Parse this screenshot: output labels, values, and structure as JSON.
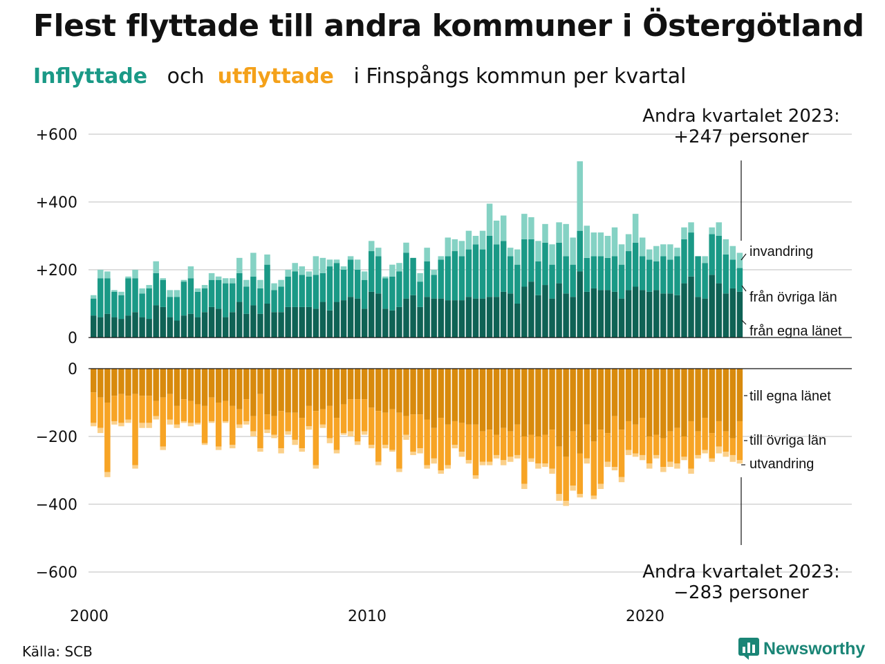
{
  "title": "Flest flyttade till andra kommuner i Östergötland",
  "subtitle": {
    "inflow_word": "Inflyttade",
    "and_word": "och",
    "outflow_word": "utflyttade",
    "rest": "i Finspångs kommun per kvartal"
  },
  "source": "Källa: SCB",
  "logo": {
    "name": "Newsworthy",
    "icon": "newsworthy-bar-icon"
  },
  "colors": {
    "in_own": "#0f6255",
    "in_other": "#1a9986",
    "in_imm": "#85d2c4",
    "out_own": "#d88a0d",
    "out_other": "#f7a425",
    "out_emi": "#fbd08a",
    "subtitle_in": "#1a9986",
    "subtitle_out": "#f4a11a"
  },
  "chart_data": {
    "type": "bar",
    "stacked": true,
    "x_start": "2000 Q1",
    "x_end": "2023 Q2",
    "x_ticks": [
      "2000",
      "2010",
      "2020"
    ],
    "y_ticks_top": [
      "+600",
      "+400",
      "+200",
      "0"
    ],
    "y_ticks_bottom": [
      "0",
      "−200",
      "−400",
      "−600"
    ],
    "ylim_top": [
      0,
      600
    ],
    "ylim_bottom": [
      -600,
      0
    ],
    "grid": true,
    "inflow_series": [
      {
        "label": "från egna länet",
        "values": [
          65,
          60,
          70,
          60,
          55,
          65,
          75,
          60,
          55,
          95,
          90,
          60,
          50,
          65,
          70,
          60,
          75,
          90,
          85,
          60,
          75,
          105,
          70,
          95,
          70,
          100,
          75,
          75,
          90,
          90,
          90,
          90,
          85,
          105,
          80,
          105,
          110,
          120,
          115,
          85,
          135,
          130,
          85,
          80,
          90,
          115,
          125,
          90,
          120,
          115,
          115,
          110,
          110,
          110,
          120,
          115,
          115,
          120,
          120,
          135,
          130,
          100,
          150,
          165,
          125,
          155,
          115,
          160,
          130,
          120,
          195,
          135,
          145,
          140,
          140,
          135,
          115,
          140,
          150,
          140,
          135,
          140,
          130,
          130,
          125,
          160,
          180,
          120,
          115,
          185,
          160,
          130,
          145,
          135
        ]
      },
      {
        "label": "från övriga län",
        "values": [
          50,
          115,
          105,
          75,
          70,
          110,
          100,
          70,
          90,
          95,
          80,
          60,
          70,
          100,
          105,
          75,
          70,
          80,
          85,
          100,
          85,
          85,
          80,
          85,
          75,
          115,
          65,
          75,
          90,
          105,
          95,
          90,
          100,
          85,
          130,
          115,
          90,
          110,
          85,
          85,
          120,
          110,
          90,
          100,
          105,
          135,
          110,
          75,
          105,
          70,
          115,
          130,
          145,
          130,
          140,
          160,
          145,
          180,
          155,
          150,
          110,
          115,
          140,
          125,
          100,
          125,
          100,
          120,
          110,
          95,
          120,
          100,
          95,
          100,
          95,
          105,
          100,
          115,
          130,
          100,
          95,
          85,
          110,
          100,
          115,
          130,
          130,
          120,
          105,
          120,
          140,
          115,
          85,
          70
        ]
      },
      {
        "label": "invandring",
        "values": [
          10,
          25,
          20,
          5,
          10,
          5,
          25,
          15,
          10,
          35,
          5,
          20,
          20,
          5,
          35,
          10,
          10,
          20,
          10,
          15,
          15,
          45,
          20,
          70,
          25,
          30,
          20,
          20,
          20,
          25,
          25,
          15,
          55,
          45,
          20,
          10,
          10,
          10,
          30,
          25,
          30,
          25,
          5,
          35,
          25,
          30,
          0,
          25,
          40,
          15,
          10,
          55,
          35,
          45,
          55,
          25,
          55,
          95,
          70,
          75,
          25,
          45,
          75,
          65,
          60,
          55,
          60,
          60,
          95,
          80,
          205,
          95,
          70,
          70,
          65,
          85,
          60,
          50,
          85,
          55,
          30,
          45,
          35,
          45,
          25,
          35,
          30,
          0,
          20,
          20,
          40,
          45,
          40,
          45
        ]
      }
    ],
    "outflow_series": [
      {
        "label": "till egna länet",
        "values": [
          70,
          85,
          100,
          80,
          75,
          80,
          75,
          80,
          80,
          95,
          85,
          75,
          110,
          90,
          95,
          105,
          110,
          85,
          100,
          95,
          110,
          120,
          90,
          140,
          75,
          135,
          140,
          125,
          130,
          130,
          145,
          110,
          125,
          120,
          110,
          145,
          105,
          90,
          90,
          90,
          115,
          125,
          130,
          120,
          130,
          140,
          135,
          135,
          150,
          175,
          145,
          165,
          155,
          160,
          165,
          165,
          185,
          180,
          195,
          175,
          185,
          165,
          200,
          195,
          200,
          195,
          180,
          230,
          260,
          185,
          250,
          165,
          215,
          180,
          190,
          140,
          180,
          155,
          165,
          145,
          200,
          195,
          205,
          185,
          175,
          200,
          155,
          185,
          145,
          190,
          155,
          185,
          205,
          155
        ]
      },
      {
        "label": "till övriga län",
        "values": [
          90,
          90,
          205,
          75,
          85,
          70,
          210,
          80,
          80,
          45,
          145,
          75,
          55,
          65,
          65,
          55,
          110,
          70,
          130,
          60,
          115,
          45,
          65,
          45,
          160,
          45,
          55,
          110,
          55,
          80,
          90,
          60,
          160,
          45,
          95,
          95,
          85,
          95,
          125,
          95,
          110,
          150,
          95,
          120,
          165,
          55,
          110,
          100,
          135,
          90,
          155,
          120,
          70,
          85,
          105,
          150,
          90,
          95,
          60,
          95,
          75,
          90,
          140,
          70,
          80,
          85,
          115,
          140,
          130,
          160,
          120,
          100,
          160,
          160,
          85,
          150,
          140,
          85,
          85,
          110,
          80,
          60,
          85,
          90,
          105,
          60,
          140,
          70,
          95,
          75,
          75,
          60,
          50,
          115
        ]
      },
      {
        "label": "utvandring",
        "values": [
          10,
          15,
          15,
          10,
          10,
          10,
          10,
          15,
          15,
          10,
          10,
          15,
          10,
          5,
          10,
          5,
          5,
          5,
          10,
          5,
          10,
          10,
          10,
          15,
          10,
          10,
          10,
          15,
          10,
          15,
          10,
          10,
          10,
          10,
          15,
          10,
          5,
          15,
          10,
          10,
          10,
          10,
          10,
          5,
          10,
          15,
          10,
          15,
          10,
          15,
          10,
          10,
          10,
          15,
          10,
          10,
          10,
          10,
          10,
          15,
          15,
          10,
          15,
          10,
          15,
          10,
          15,
          20,
          15,
          15,
          10,
          15,
          10,
          15,
          15,
          10,
          15,
          15,
          10,
          15,
          15,
          10,
          15,
          15,
          15,
          10,
          15,
          10,
          10,
          10,
          20,
          15,
          20,
          10
        ]
      }
    ],
    "annotations": {
      "top_line1": "Andra kvartalet 2023:",
      "top_line2": "+247 personer",
      "bottom_line1": "Andra kvartalet 2023:",
      "bottom_line2": "−283 personer"
    }
  }
}
